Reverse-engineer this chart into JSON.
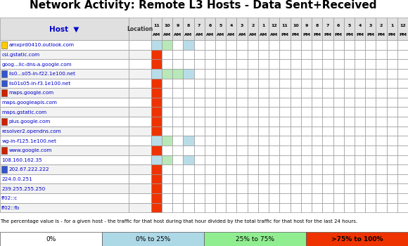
{
  "title": "Network Activity: Remote L3 Hosts - Data Sent+Received",
  "col_header_row1": [
    "11",
    "10",
    "9",
    "8",
    "7",
    "6",
    "5",
    "4",
    "3",
    "2",
    "1",
    "12",
    "11",
    "10",
    "9",
    "8",
    "7",
    "6",
    "5",
    "4",
    "3",
    "2",
    "1",
    "12"
  ],
  "col_header_row2": [
    "AM",
    "AM",
    "AM",
    "AM",
    "AM",
    "AM",
    "AM",
    "AM",
    "AM",
    "AM",
    "AM",
    "AM",
    "PM",
    "PM",
    "PM",
    "PM",
    "PM",
    "PM",
    "PM",
    "PM",
    "PM",
    "PM",
    "PM",
    "PM"
  ],
  "rows": [
    "amxprd0410.outlook.com",
    "csi.gstatic.com",
    "goog...lic-dns-a.google.com",
    "lis0...s05-in-f22.1e100.net",
    "lis01s05-in-f3.1e100.net",
    "maps.google.com",
    "maps.googleapis.com",
    "maps.gstatic.com",
    "plus.google.com",
    "resolver2.opendns.com",
    "wg-in-f125.1e100.net",
    "www.google.com",
    "108.160.162.35",
    "202.67.222.222",
    "224.0.0.251",
    "239.255.255.250",
    "ff02::c",
    "ff02::fb"
  ],
  "num_rows": 18,
  "num_cols": 24,
  "cell_colors": {
    "0,0": "#b8dde8",
    "0,1": "#b8e8b8",
    "0,3": "#b8dde8",
    "1,0": "#ee3300",
    "2,0": "#ee3300",
    "3,0": "#b8dde8",
    "3,1": "#b8e8b8",
    "3,2": "#b8e8b8",
    "3,3": "#b8dde8",
    "4,0": "#ee3300",
    "5,0": "#ee3300",
    "6,0": "#ee3300",
    "7,0": "#ee3300",
    "8,0": "#ee3300",
    "9,0": "#ee3300",
    "10,0": "#b8dde8",
    "10,1": "#b8e8b8",
    "10,3": "#b8dde8",
    "11,0": "#ee3300",
    "12,0": "#b8dde8",
    "12,1": "#b8e8b8",
    "12,3": "#b8dde8",
    "13,0": "#ee3300",
    "14,0": "#ee3300",
    "15,0": "#ee3300",
    "16,0": "#ee3300",
    "17,0": "#ee3300"
  },
  "row_icon_colors": {
    "0": "#ffcc00",
    "3": "#3355cc",
    "4": "#3355cc",
    "5": "#cc2200",
    "8": "#cc2200",
    "11": "#cc2200",
    "13": "#3355cc"
  },
  "legend_items": [
    {
      "label": "0%",
      "color": "#ffffff"
    },
    {
      "label": "0% to 25%",
      "color": "#add8e6"
    },
    {
      "label": "25% to 75%",
      "color": "#90ee90"
    },
    {
      "label": ">75% to 100%",
      "color": "#ee3300"
    }
  ],
  "legend_text": "The percentage value is - for a given host - the traffic for that host during that hour divided by the total traffic for that host for the last 24 hours.",
  "header_bg": "#e0e0e0",
  "header_text_color": "#0000cc",
  "grid_color": "#999999",
  "title_fontsize": 11
}
